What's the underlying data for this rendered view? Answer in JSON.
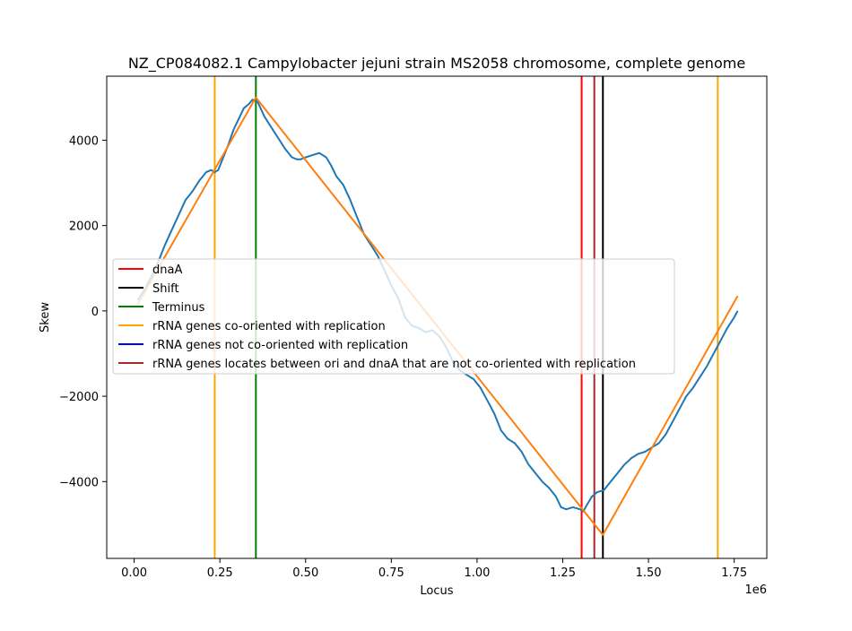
{
  "chart_data": {
    "type": "line",
    "title": "NZ_CP084082.1 Campylobacter jejuni strain MS2058 chromosome, complete genome",
    "xlabel": "Locus",
    "ylabel": "Skew",
    "x_offset_label": "1e6",
    "xlim": [
      -80000,
      1845000
    ],
    "ylim": [
      -5800,
      5500
    ],
    "x_ticks": [
      0,
      250000,
      500000,
      750000,
      1000000,
      1250000,
      1500000,
      1750000
    ],
    "x_tick_labels": [
      "0.00",
      "0.25",
      "0.50",
      "0.75",
      "1.00",
      "1.25",
      "1.50",
      "1.75"
    ],
    "y_ticks": [
      -4000,
      -2000,
      0,
      2000,
      4000
    ],
    "y_tick_labels": [
      "−4000",
      "−2000",
      "0",
      "2000",
      "4000"
    ],
    "grid": false,
    "legend_position": "center-left",
    "series": [
      {
        "name": "",
        "color": "#1f77b4",
        "x": [
          10000,
          30000,
          50000,
          70000,
          90000,
          110000,
          130000,
          150000,
          170000,
          190000,
          210000,
          225000,
          235000,
          245000,
          260000,
          275000,
          290000,
          305000,
          320000,
          335000,
          345000,
          360000,
          380000,
          400000,
          420000,
          440000,
          460000,
          475000,
          485000,
          500000,
          520000,
          540000,
          560000,
          575000,
          590000,
          610000,
          630000,
          650000,
          670000,
          690000,
          710000,
          730000,
          750000,
          770000,
          790000,
          810000,
          830000,
          850000,
          870000,
          890000,
          910000,
          930000,
          950000,
          970000,
          990000,
          1010000,
          1030000,
          1050000,
          1070000,
          1090000,
          1110000,
          1130000,
          1150000,
          1170000,
          1190000,
          1210000,
          1230000,
          1245000,
          1260000,
          1280000,
          1300000,
          1310000,
          1320000,
          1335000,
          1350000,
          1370000,
          1390000,
          1410000,
          1430000,
          1450000,
          1470000,
          1490000,
          1510000,
          1530000,
          1550000,
          1570000,
          1590000,
          1610000,
          1630000,
          1650000,
          1670000,
          1690000,
          1710000,
          1730000,
          1750000,
          1760000
        ],
        "y": [
          250,
          500,
          800,
          1150,
          1550,
          1900,
          2250,
          2600,
          2800,
          3050,
          3250,
          3300,
          3250,
          3300,
          3600,
          3900,
          4250,
          4500,
          4750,
          4850,
          4950,
          4900,
          4550,
          4300,
          4050,
          3800,
          3600,
          3550,
          3550,
          3600,
          3650,
          3700,
          3600,
          3400,
          3150,
          2950,
          2600,
          2200,
          1800,
          1550,
          1300,
          950,
          600,
          300,
          -150,
          -350,
          -400,
          -500,
          -450,
          -600,
          -850,
          -1200,
          -1400,
          -1500,
          -1600,
          -1800,
          -2100,
          -2400,
          -2800,
          -3000,
          -3100,
          -3300,
          -3600,
          -3800,
          -4000,
          -4150,
          -4350,
          -4600,
          -4650,
          -4600,
          -4650,
          -4700,
          -4550,
          -4350,
          -4250,
          -4200,
          -4000,
          -3800,
          -3600,
          -3450,
          -3350,
          -3300,
          -3200,
          -3100,
          -2900,
          -2600,
          -2300,
          -2000,
          -1800,
          -1550,
          -1300,
          -1000,
          -700,
          -400,
          -150,
          0
        ]
      },
      {
        "name": "",
        "color": "#ff7f0e",
        "x": [
          10000,
          355000,
          1367000,
          1760000
        ],
        "y": [
          150,
          5000,
          -5250,
          350
        ]
      }
    ],
    "vlines": [
      {
        "legend_index": 3,
        "x": 235000,
        "color": "#ffa500"
      },
      {
        "legend_index": 2,
        "x": 355000,
        "color": "#008000"
      },
      {
        "legend_index": 0,
        "x": 1305000,
        "color": "#ff0000"
      },
      {
        "legend_index": 5,
        "x": 1342000,
        "color": "#a52a2a"
      },
      {
        "legend_index": 1,
        "x": 1367000,
        "color": "#000000"
      },
      {
        "legend_index": 3,
        "x": 1702000,
        "color": "#ffa500"
      }
    ],
    "legend": [
      {
        "label": "dnaA",
        "color": "#ff0000"
      },
      {
        "label": "Shift",
        "color": "#000000"
      },
      {
        "label": "Terminus",
        "color": "#008000"
      },
      {
        "label": "rRNA genes co-oriented with replication",
        "color": "#ffa500"
      },
      {
        "label": "rRNA genes not co-oriented with replication",
        "color": "#0000ff"
      },
      {
        "label": "rRNA genes locates between ori and dnaA that are not co-oriented with replication",
        "color": "#a52a2a"
      }
    ]
  }
}
